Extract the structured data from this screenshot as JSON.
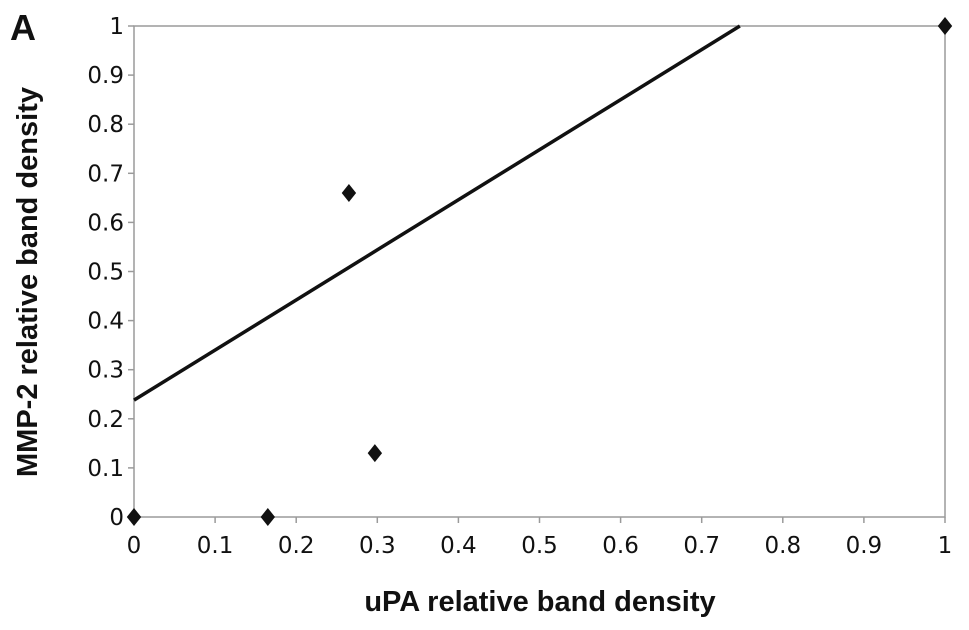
{
  "panel_label": "A",
  "chart_data": {
    "type": "scatter",
    "xlabel": "uPA relative band density",
    "ylabel": "MMP-2 relative band density",
    "xlim": [
      0,
      1
    ],
    "ylim": [
      0,
      1
    ],
    "x_ticks": [
      "0",
      "0.1",
      "0.2",
      "0.3",
      "0.4",
      "0.5",
      "0.6",
      "0.7",
      "0.8",
      "0.9",
      "1"
    ],
    "y_ticks": [
      "0",
      "0.1",
      "0.2",
      "0.3",
      "0.4",
      "0.5",
      "0.6",
      "0.7",
      "0.8",
      "0.9",
      "1"
    ],
    "grid": false,
    "points": [
      {
        "x": 0,
        "y": 0
      },
      {
        "x": 0.165,
        "y": 0
      },
      {
        "x": 0.265,
        "y": 0.66
      },
      {
        "x": 0.297,
        "y": 0.13
      },
      {
        "x": 1,
        "y": 1
      }
    ],
    "trendline": {
      "type": "linear",
      "slope": 1.02,
      "intercept": 0.238
    },
    "marker_color": "#111111",
    "line_color": "#111111"
  }
}
